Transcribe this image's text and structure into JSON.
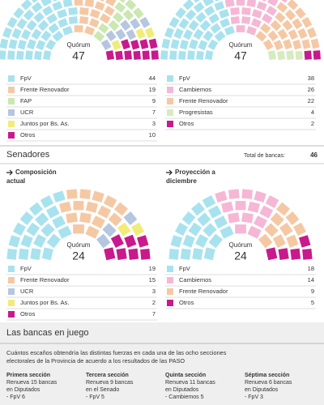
{
  "chart_data": [
    {
      "type": "hemicycle",
      "quorum_label": "Quórum",
      "quorum": 47,
      "series": [
        {
          "name": "FpV",
          "color": "#a8e2ee",
          "value": 44
        },
        {
          "name": "Frente Renovador",
          "color": "#f5c8a4",
          "value": 19
        },
        {
          "name": "FAP",
          "color": "#cbe7b2",
          "value": 9
        },
        {
          "name": "UCR",
          "color": "#b5c6e0",
          "value": 7
        },
        {
          "name": "Juntos por Bs. As.",
          "color": "#f1ec78",
          "value": 3
        },
        {
          "name": "Otros",
          "color": "#c81a8c",
          "value": 10
        }
      ]
    },
    {
      "type": "hemicycle",
      "quorum_label": "Quórum",
      "quorum": 47,
      "series": [
        {
          "name": "FpV",
          "color": "#a8e2ee",
          "value": 38
        },
        {
          "name": "Cambiemos",
          "color": "#f5b7d5",
          "value": 26
        },
        {
          "name": "Frente Renovador",
          "color": "#f5c8a4",
          "value": 22
        },
        {
          "name": "Progresistas",
          "color": "#d6ebbf",
          "value": 4
        },
        {
          "name": "Otros",
          "color": "#c81a8c",
          "value": 2
        }
      ]
    },
    {
      "type": "hemicycle",
      "title": "Composición actual",
      "quorum_label": "Quórum",
      "quorum": 24,
      "series": [
        {
          "name": "FpV",
          "color": "#a8e2ee",
          "value": 19
        },
        {
          "name": "Frente Renovador",
          "color": "#f5c8a4",
          "value": 15
        },
        {
          "name": "UCR",
          "color": "#b5c6e0",
          "value": 3
        },
        {
          "name": "Juntos por Bs. As.",
          "color": "#f1ec78",
          "value": 2
        },
        {
          "name": "Otros",
          "color": "#c81a8c",
          "value": 7
        }
      ]
    },
    {
      "type": "hemicycle",
      "title": "Proyección a diciembre",
      "quorum_label": "Quórum",
      "quorum": 24,
      "series": [
        {
          "name": "FpV",
          "color": "#a8e2ee",
          "value": 18
        },
        {
          "name": "Cambiemos",
          "color": "#f5b7d5",
          "value": 14
        },
        {
          "name": "Frente Renovador",
          "color": "#f5c8a4",
          "value": 9
        },
        {
          "name": "Otros",
          "color": "#c81a8c",
          "value": 5
        }
      ]
    }
  ],
  "senadores": {
    "heading": "Senadores",
    "total_label": "Total de bancas:",
    "total": "46"
  },
  "bancas_en_juego": {
    "title": "Las bancas en juego",
    "description": [
      "Cuántos escaños obtendría las distintas fuerzas en cada una de las ocho secciones",
      "electorales de la Provincia de acuerdo a los resultados de las PASO"
    ],
    "sections": [
      {
        "title": "Primera sección",
        "lines": [
          "Renueva 15 bancas",
          "en Diputados",
          "- FpV 6"
        ]
      },
      {
        "title": "Tercera sección",
        "lines": [
          "Renueva 9 bancas",
          "en el Senado",
          "- FpV 5"
        ]
      },
      {
        "title": "Quinta sección",
        "lines": [
          "Renueva 11 bancas",
          "en Diputados",
          "- Cambiemos 5"
        ]
      },
      {
        "title": "Séptima sección",
        "lines": [
          "Renueva 6 bancas",
          "en Diputados",
          "- FpV 3"
        ]
      }
    ]
  }
}
